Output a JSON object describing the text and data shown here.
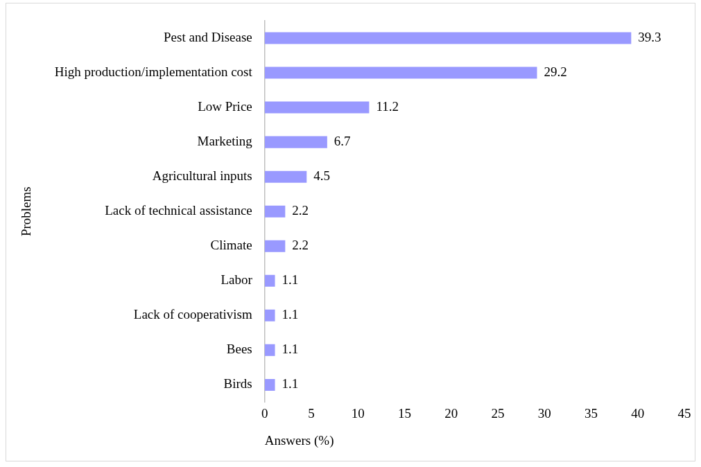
{
  "chart_data": {
    "type": "bar",
    "orientation": "horizontal",
    "xlabel": "Answers (%)",
    "ylabel": "Problems",
    "categories": [
      "Pest and Disease",
      "High production/implementation cost",
      "Low Price",
      "Marketing",
      "Agricultural inputs",
      "Lack of technical assistance",
      "Climate",
      "Labor",
      "Lack of cooperativism",
      "Bees",
      "Birds"
    ],
    "values": [
      39.3,
      29.2,
      11.2,
      6.7,
      4.5,
      2.2,
      2.2,
      1.1,
      1.1,
      1.1,
      1.1
    ],
    "color": "#9999ff",
    "xlim": [
      0,
      45
    ],
    "xticks": [
      0,
      5,
      10,
      15,
      20,
      25,
      30,
      35,
      40,
      45
    ],
    "data_labels": true,
    "grid": false,
    "legend": false
  }
}
